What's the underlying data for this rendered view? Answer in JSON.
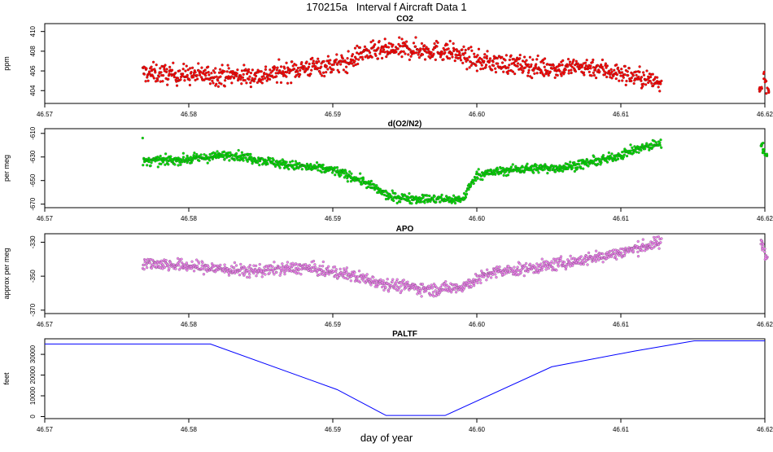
{
  "figure": {
    "title": "170215a   Interval f Aircraft Data 1",
    "xlabel": "day of year"
  },
  "chart_data": [
    {
      "type": "scatter",
      "title": "CO2",
      "ylabel": "ppm",
      "color": "#ff0000",
      "xlim": [
        46.57,
        46.62
      ],
      "ylim": [
        402.7,
        410.8
      ],
      "xticks": [
        46.57,
        46.58,
        46.59,
        46.6,
        46.61,
        46.62
      ],
      "yticks": [
        404,
        406,
        408,
        410
      ],
      "series_shape": [
        [
          46.5768,
          405.8
        ],
        [
          46.58,
          405.6
        ],
        [
          46.585,
          405.5
        ],
        [
          46.588,
          406.3
        ],
        [
          46.591,
          406.8
        ],
        [
          46.592,
          407.8
        ],
        [
          46.595,
          408.2
        ],
        [
          46.598,
          408.0
        ],
        [
          46.6,
          407.0
        ],
        [
          46.605,
          406.3
        ],
        [
          46.608,
          406.4
        ],
        [
          46.6128,
          404.8
        ]
      ],
      "gap_points": [
        [
          46.6197,
          404.4
        ],
        [
          46.62,
          405.3
        ],
        [
          46.6202,
          404.2
        ]
      ],
      "noise": 0.9
    },
    {
      "type": "scatter",
      "title": "d(O2/N2)",
      "ylabel": "per meg",
      "color": "#00dd00",
      "xlim": [
        46.57,
        46.62
      ],
      "ylim": [
        -673,
        -606
      ],
      "xticks": [
        46.57,
        46.58,
        46.59,
        46.6,
        46.61,
        46.62
      ],
      "yticks": [
        -610,
        -630,
        -650,
        -670
      ],
      "series_shape": [
        [
          46.5768,
          -634
        ],
        [
          46.58,
          -632
        ],
        [
          46.583,
          -628
        ],
        [
          46.587,
          -637
        ],
        [
          46.59,
          -641
        ],
        [
          46.592,
          -650
        ],
        [
          46.594,
          -664
        ],
        [
          46.597,
          -666
        ],
        [
          46.599,
          -666
        ],
        [
          46.6,
          -645
        ],
        [
          46.603,
          -640
        ],
        [
          46.606,
          -639
        ],
        [
          46.609,
          -632
        ],
        [
          46.611,
          -624
        ],
        [
          46.6128,
          -618
        ]
      ],
      "gap_points": [
        [
          46.6198,
          -620
        ],
        [
          46.6199,
          -625
        ],
        [
          46.6201,
          -628
        ]
      ],
      "noise": 3.5
    },
    {
      "type": "scatter",
      "title": "APO",
      "ylabel": "approx per meg",
      "color": "#ee82ee",
      "xlim": [
        46.57,
        46.62
      ],
      "ylim": [
        -372,
        -325
      ],
      "xticks": [
        46.57,
        46.58,
        46.59,
        46.6,
        46.61,
        46.62
      ],
      "yticks": [
        -330,
        -350,
        -370
      ],
      "series_shape": [
        [
          46.5768,
          -342
        ],
        [
          46.58,
          -344
        ],
        [
          46.584,
          -347
        ],
        [
          46.588,
          -345
        ],
        [
          46.591,
          -349
        ],
        [
          46.594,
          -355
        ],
        [
          46.597,
          -358
        ],
        [
          46.599,
          -356
        ],
        [
          46.601,
          -348
        ],
        [
          46.604,
          -345
        ],
        [
          46.607,
          -341
        ],
        [
          46.61,
          -336
        ],
        [
          46.6128,
          -330
        ]
      ],
      "gap_points": [
        [
          46.6198,
          -330
        ],
        [
          46.6199,
          -334
        ],
        [
          46.6201,
          -338
        ]
      ],
      "noise": 3.2
    },
    {
      "type": "line",
      "title": "PALTF",
      "ylabel": "feet",
      "color": "#0000ff",
      "xlim": [
        46.57,
        46.62
      ],
      "ylim": [
        -1000,
        37500
      ],
      "xticks": [
        46.57,
        46.58,
        46.59,
        46.6,
        46.61,
        46.62
      ],
      "yticks": [
        0,
        10000,
        20000,
        30000
      ],
      "x": [
        46.57,
        46.5815,
        46.5903,
        46.5937,
        46.5978,
        46.6052,
        46.6109,
        46.6151,
        46.62
      ],
      "y": [
        35000,
        35000,
        13000,
        500,
        500,
        24000,
        31500,
        36500,
        36500
      ]
    }
  ]
}
